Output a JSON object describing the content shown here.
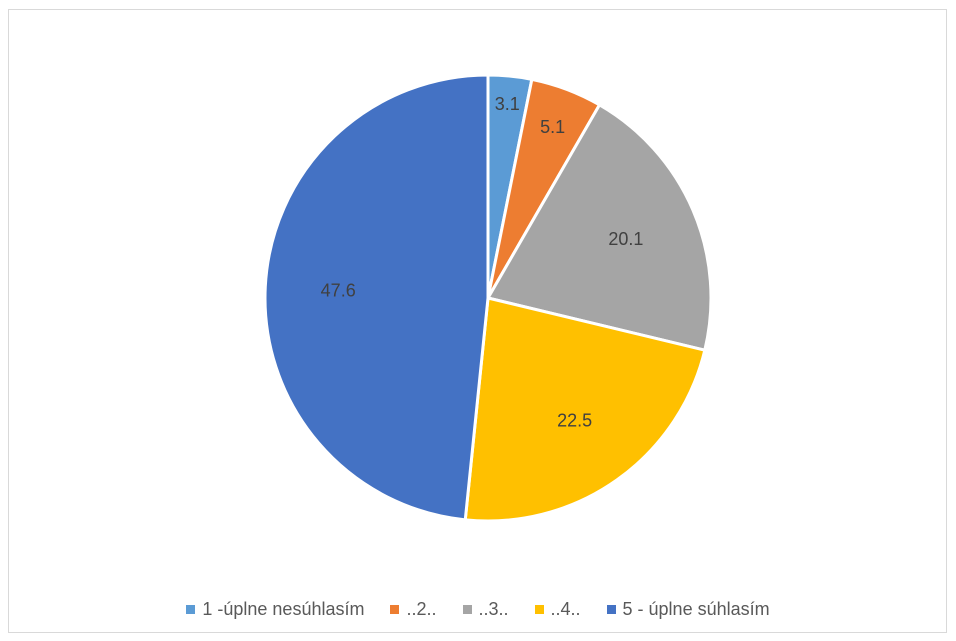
{
  "chart_data": {
    "type": "pie",
    "categories": [
      "1 -úplne nesúhlasím",
      "..2..",
      "..3..",
      "..4..",
      "5 - úplne súhlasím"
    ],
    "values": [
      3.1,
      5.1,
      20.1,
      22.5,
      47.6
    ],
    "data_labels": [
      "3.1",
      "5.1",
      "20.1",
      "22.5",
      "47.6"
    ],
    "colors": [
      "#5B9BD5",
      "#ED7D31",
      "#A5A5A5",
      "#FFC000",
      "#4472C4"
    ],
    "start_angle_deg": 0,
    "direction": "clockwise",
    "legend_position": "bottom"
  }
}
